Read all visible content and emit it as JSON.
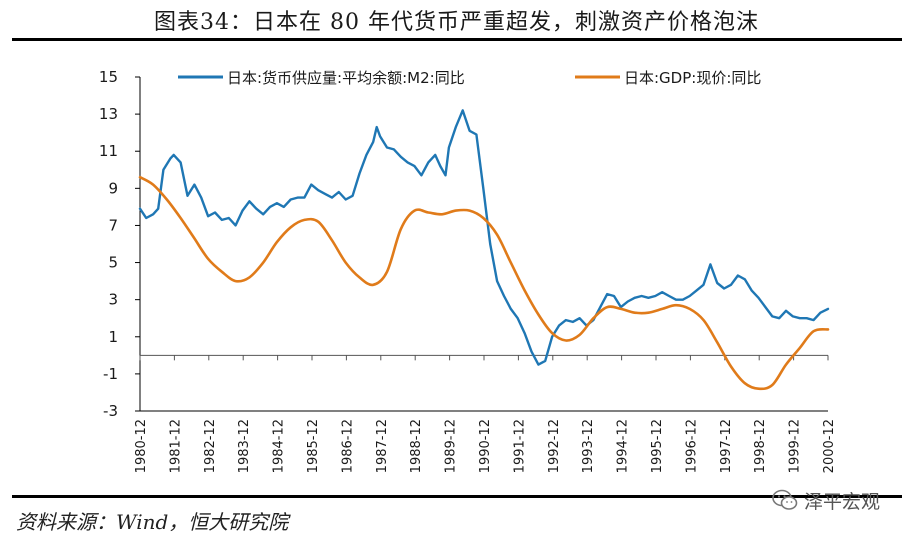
{
  "title": "图表34：日本在 80 年代货币严重超发，刺激资产价格泡沫",
  "source": "资料来源：Wind，恒大研究院",
  "watermark": "泽平宏观",
  "colors": {
    "m2": "#1f77b4",
    "gdp": "#e07b1a",
    "axis": "#000000"
  },
  "chart_data": {
    "type": "line",
    "title": "",
    "xlabel": "",
    "ylabel": "",
    "ylim": [
      -3,
      15
    ],
    "yticks": [
      -3,
      -1,
      1,
      3,
      5,
      7,
      9,
      11,
      13,
      15
    ],
    "grid": false,
    "legend_position": "top",
    "x_ticks": [
      "1980-12",
      "1981-12",
      "1982-12",
      "1983-12",
      "1984-12",
      "1985-12",
      "1986-12",
      "1987-12",
      "1988-12",
      "1989-12",
      "1990-12",
      "1991-12",
      "1992-12",
      "1993-12",
      "1994-12",
      "1995-12",
      "1996-12",
      "1997-12",
      "1998-12",
      "1999-12",
      "2000-12"
    ],
    "series": [
      {
        "name": "日本:货币供应量:平均余额:M2:同比",
        "x": [
          1980.92,
          1981.1,
          1981.3,
          1981.45,
          1981.6,
          1981.8,
          1981.9,
          1982.1,
          1982.3,
          1982.5,
          1982.7,
          1982.9,
          1983.1,
          1983.3,
          1983.5,
          1983.7,
          1983.9,
          1984.1,
          1984.3,
          1984.5,
          1984.7,
          1984.9,
          1985.1,
          1985.3,
          1985.5,
          1985.7,
          1985.9,
          1986.1,
          1986.3,
          1986.5,
          1986.7,
          1986.9,
          1987.1,
          1987.3,
          1987.5,
          1987.7,
          1987.8,
          1987.9,
          1988.1,
          1988.3,
          1988.5,
          1988.7,
          1988.9,
          1989.1,
          1989.3,
          1989.5,
          1989.65,
          1989.8,
          1989.9,
          1990.1,
          1990.3,
          1990.5,
          1990.7,
          1990.9,
          1991.1,
          1991.3,
          1991.5,
          1991.7,
          1991.9,
          1992.1,
          1992.3,
          1992.5,
          1992.7,
          1992.9,
          1993.1,
          1993.3,
          1993.5,
          1993.7,
          1993.9,
          1994.1,
          1994.3,
          1994.5,
          1994.7,
          1994.9,
          1995.1,
          1995.3,
          1995.5,
          1995.7,
          1995.9,
          1996.1,
          1996.3,
          1996.5,
          1996.7,
          1996.9,
          1997.1,
          1997.3,
          1997.5,
          1997.7,
          1997.9,
          1998.1,
          1998.3,
          1998.5,
          1998.7,
          1998.9,
          1999.1,
          1999.3,
          1999.5,
          1999.7,
          1999.9,
          2000.1,
          2000.3,
          2000.5,
          2000.7,
          2000.92
        ],
        "values": [
          7.9,
          7.4,
          7.6,
          7.9,
          10.0,
          10.6,
          10.8,
          10.4,
          8.6,
          9.2,
          8.5,
          7.5,
          7.7,
          7.3,
          7.4,
          7.0,
          7.8,
          8.3,
          7.9,
          7.6,
          8.0,
          8.2,
          8.0,
          8.4,
          8.5,
          8.5,
          9.2,
          8.9,
          8.7,
          8.5,
          8.8,
          8.4,
          8.6,
          9.8,
          10.8,
          11.5,
          12.3,
          11.8,
          11.2,
          11.1,
          10.7,
          10.4,
          10.2,
          9.7,
          10.4,
          10.8,
          10.2,
          9.7,
          11.2,
          12.3,
          13.2,
          12.1,
          11.9,
          9.0,
          6.0,
          4.0,
          3.2,
          2.5,
          2.0,
          1.2,
          0.2,
          -0.5,
          -0.3,
          1.0,
          1.6,
          1.9,
          1.8,
          2.0,
          1.6,
          1.9,
          2.6,
          3.3,
          3.2,
          2.6,
          2.9,
          3.1,
          3.2,
          3.1,
          3.2,
          3.4,
          3.2,
          3.0,
          3.0,
          3.2,
          3.5,
          3.8,
          4.9,
          3.9,
          3.6,
          3.8,
          4.3,
          4.1,
          3.5,
          3.1,
          2.6,
          2.1,
          2.0,
          2.4,
          2.1,
          2.0,
          2.0,
          1.9,
          2.3,
          2.5
        ]
      },
      {
        "name": "日本:GDP:现价:同比",
        "x": [
          1980.92,
          1981.3,
          1981.7,
          1982.1,
          1982.5,
          1982.9,
          1983.3,
          1983.7,
          1984.1,
          1984.5,
          1984.9,
          1985.3,
          1985.7,
          1986.1,
          1986.5,
          1986.9,
          1987.3,
          1987.7,
          1988.1,
          1988.5,
          1988.9,
          1989.3,
          1989.7,
          1990.1,
          1990.5,
          1990.9,
          1991.3,
          1991.7,
          1992.1,
          1992.5,
          1992.9,
          1993.3,
          1993.7,
          1994.1,
          1994.5,
          1994.9,
          1995.3,
          1995.7,
          1996.1,
          1996.5,
          1996.9,
          1997.3,
          1997.7,
          1998.1,
          1998.5,
          1998.9,
          1999.3,
          1999.7,
          2000.1,
          2000.5,
          2000.92
        ],
        "values": [
          9.6,
          9.2,
          8.4,
          7.4,
          6.3,
          5.2,
          4.5,
          4.0,
          4.2,
          5.0,
          6.1,
          6.9,
          7.3,
          7.2,
          6.2,
          5.0,
          4.2,
          3.8,
          4.5,
          6.8,
          7.8,
          7.7,
          7.6,
          7.8,
          7.8,
          7.4,
          6.5,
          5.0,
          3.5,
          2.2,
          1.2,
          0.8,
          1.1,
          2.0,
          2.6,
          2.5,
          2.3,
          2.3,
          2.5,
          2.7,
          2.5,
          1.9,
          0.7,
          -0.6,
          -1.5,
          -1.8,
          -1.6,
          -0.5,
          0.4,
          1.3,
          1.4
        ]
      }
    ]
  }
}
